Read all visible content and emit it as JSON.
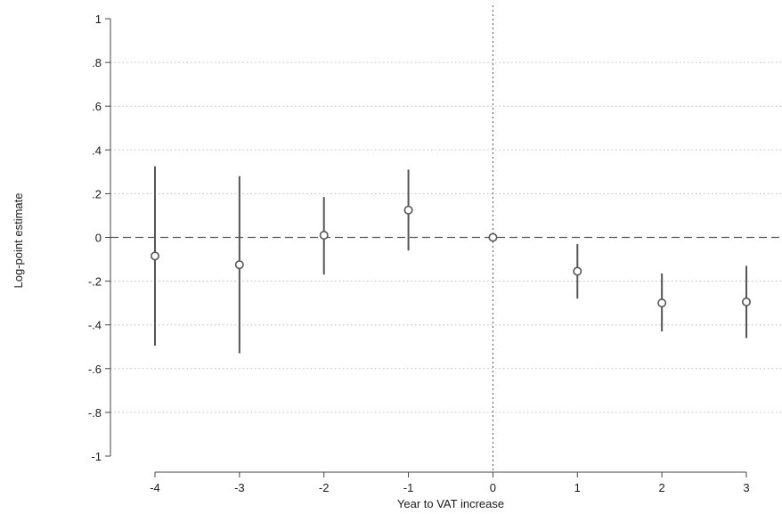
{
  "chart_data": {
    "type": "scatter",
    "title": "",
    "xlabel": "Year to VAT increase",
    "ylabel": "Log-point estimate",
    "xlim": [
      -4,
      3
    ],
    "ylim": [
      -1,
      1
    ],
    "x_ticks": [
      -4,
      -3,
      -2,
      -1,
      0,
      1,
      2,
      3
    ],
    "x_tick_labels": [
      "-4",
      "-3",
      "-2",
      "-1",
      "0",
      "1",
      "2",
      "3"
    ],
    "y_ticks": [
      1,
      0.8,
      0.6,
      0.4,
      0.2,
      0,
      -0.2,
      -0.4,
      -0.6,
      -0.8,
      -1
    ],
    "y_tick_labels": [
      "1",
      ".8",
      ".6",
      ".4",
      ".2",
      "0",
      "-.2",
      "-.4",
      "-.6",
      "-.8",
      "-1"
    ],
    "grid": true,
    "reference_lines": {
      "horizontal": 0,
      "vertical": 0
    },
    "points": [
      {
        "x": -4,
        "y": -0.085,
        "ci_low": -0.495,
        "ci_high": 0.325
      },
      {
        "x": -3,
        "y": -0.125,
        "ci_low": -0.53,
        "ci_high": 0.28
      },
      {
        "x": -2,
        "y": 0.01,
        "ci_low": -0.17,
        "ci_high": 0.185
      },
      {
        "x": -1,
        "y": 0.125,
        "ci_low": -0.06,
        "ci_high": 0.31
      },
      {
        "x": 0,
        "y": 0.0,
        "ci_low": 0.0,
        "ci_high": 0.0
      },
      {
        "x": 1,
        "y": -0.155,
        "ci_low": -0.28,
        "ci_high": -0.03
      },
      {
        "x": 2,
        "y": -0.3,
        "ci_low": -0.43,
        "ci_high": -0.165
      },
      {
        "x": 3,
        "y": -0.295,
        "ci_low": -0.46,
        "ci_high": -0.13
      }
    ],
    "colors": {
      "marker": "#555555",
      "grid": "#bdbdbd",
      "axis": "#444444",
      "reference": "#555555"
    }
  }
}
